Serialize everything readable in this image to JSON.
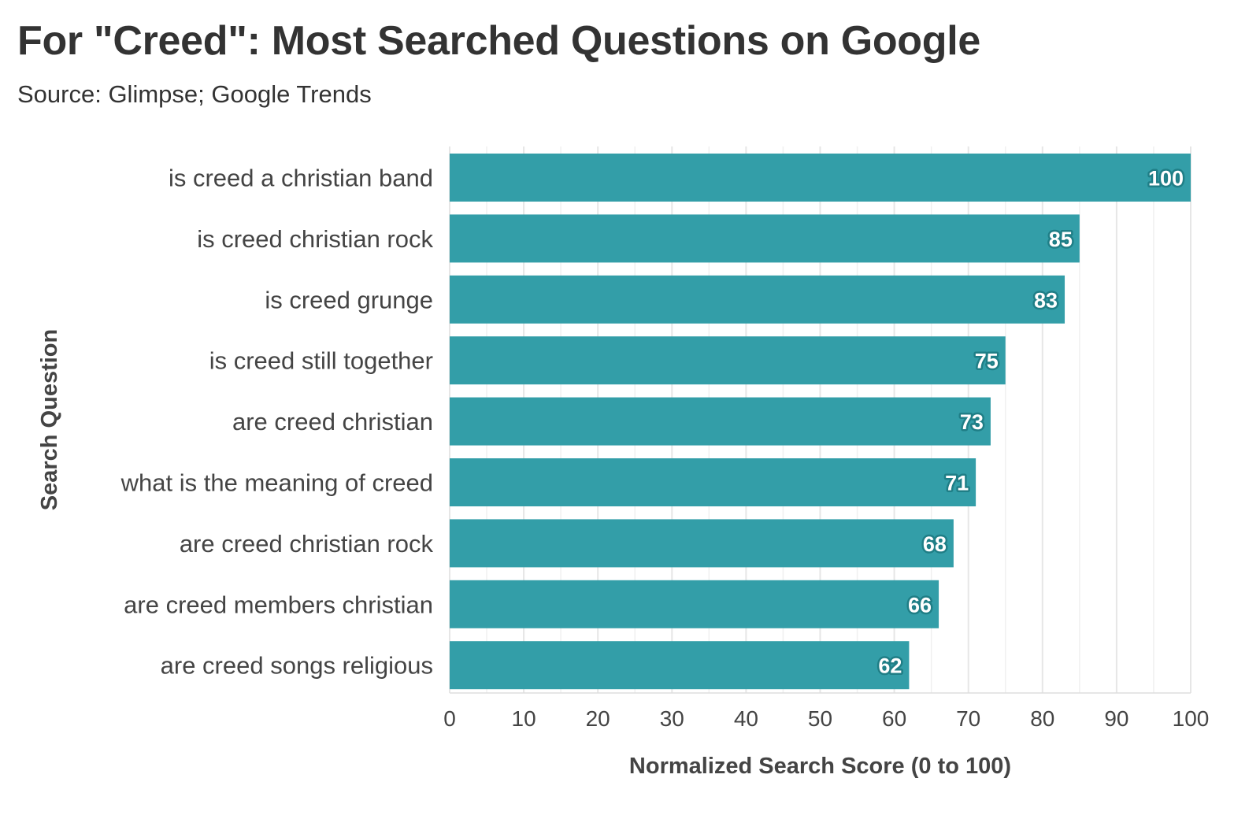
{
  "title": "For \"Creed\": Most Searched Questions on Google",
  "subtitle": "Source: Glimpse; Google Trends",
  "colors": {
    "bar": "#339ea8",
    "label_outline": "#1f7e86",
    "grid": "#e6e6e6",
    "text": "#333333"
  },
  "chart_data": {
    "type": "bar",
    "orientation": "horizontal",
    "categories": [
      "is creed a christian band",
      "is creed christian rock",
      "is creed grunge",
      "is creed still together",
      "are creed christian",
      "what is the meaning of creed",
      "are creed christian rock",
      "are creed members christian",
      "are creed songs religious"
    ],
    "values": [
      100,
      85,
      83,
      75,
      73,
      71,
      68,
      66,
      62
    ],
    "xlabel": "Normalized Search Score (0 to 100)",
    "ylabel": "Search Question",
    "xlim": [
      0,
      100
    ],
    "xticks": [
      0,
      10,
      20,
      30,
      40,
      50,
      60,
      70,
      80,
      90,
      100
    ],
    "grid": true,
    "data_labels": true
  }
}
